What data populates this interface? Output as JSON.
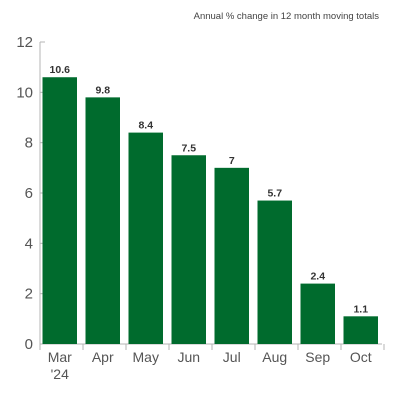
{
  "chart_data": {
    "type": "bar",
    "subtitle": "Annual % change in 12 month moving totals",
    "categories": [
      "Mar",
      "Apr",
      "May",
      "Jun",
      "Jul",
      "Aug",
      "Sep",
      "Oct"
    ],
    "category_sublabels": [
      "'24",
      "",
      "",
      "",
      "",
      "",
      "",
      ""
    ],
    "values": [
      10.6,
      9.8,
      8.4,
      7.5,
      7,
      5.7,
      2.4,
      1.1
    ],
    "data_labels": [
      "10.6",
      "9.8",
      "8.4",
      "7.5",
      "7",
      "5.7",
      "2.4",
      "1.1"
    ],
    "ylim": [
      0,
      12
    ],
    "yticks": [
      0,
      2,
      4,
      6,
      8,
      10,
      12
    ],
    "grid": false,
    "legend": "none",
    "bar_color": "#006b2d",
    "axis_color": "#b5b5b5"
  }
}
